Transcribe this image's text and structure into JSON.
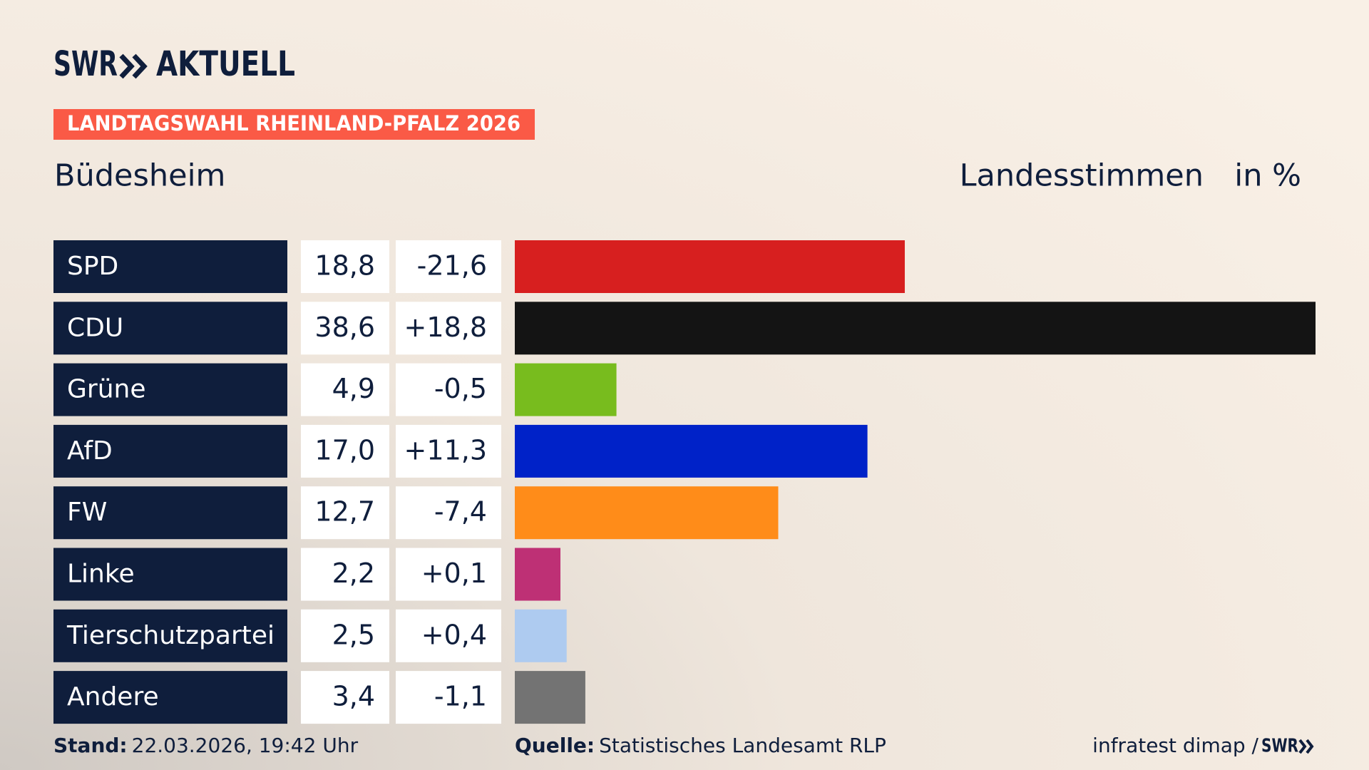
{
  "chart_data": {
    "type": "bar",
    "brand": "SWR",
    "brand_suffix": "AKTUELL",
    "banner": "LANDTAGSWAHL RHEINLAND-PFALZ 2026",
    "title": "Büdesheim",
    "subtitle": "Landesstimmen",
    "unit": "in %",
    "categories": [
      "SPD",
      "CDU",
      "Grüne",
      "AfD",
      "FW",
      "Linke",
      "Tierschutzpartei",
      "Andere"
    ],
    "values": [
      18.8,
      38.6,
      4.9,
      17.0,
      12.7,
      2.2,
      2.5,
      3.4
    ],
    "value_labels": [
      "18,8",
      "38,6",
      "4,9",
      "17,0",
      "12,7",
      "2,2",
      "2,5",
      "3,4"
    ],
    "colors": [
      "#d71f1f",
      "#141414",
      "#78bc1e",
      "#0022c8",
      "#ff8c19",
      "#be3075",
      "#aecbf0",
      "#737373"
    ],
    "changes": {
      "values": [
        -21.6,
        18.8,
        -0.5,
        11.3,
        -7.4,
        0.1,
        0.4,
        -1.1
      ],
      "value_labels": [
        "-21,6",
        "+18,8",
        "-0,5",
        "+11,3",
        "-7,4",
        "+0,1",
        "+0,4",
        "-1,1"
      ]
    },
    "xlim": [
      0,
      38.6
    ],
    "footer": {
      "stand_label": "Stand:",
      "stand": "22.03.2026, 19:42 Uhr",
      "source_label": "Quelle:",
      "source": "Statistisches Landesamt RLP",
      "credit": "infratest dimap /",
      "credit_brand": "SWR"
    }
  }
}
